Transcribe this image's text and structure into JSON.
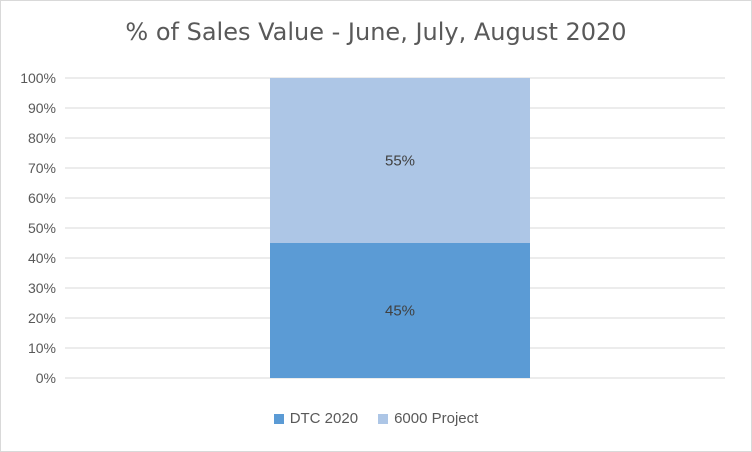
{
  "chart_data": {
    "type": "bar",
    "stacked": true,
    "title": "% of Sales Value - June, July, August 2020",
    "xlabel": "",
    "ylabel": "",
    "ylim": [
      0,
      100
    ],
    "y_ticks": [
      "0%",
      "10%",
      "20%",
      "30%",
      "40%",
      "50%",
      "60%",
      "70%",
      "80%",
      "90%",
      "100%"
    ],
    "categories": [
      ""
    ],
    "series": [
      {
        "name": "DTC 2020",
        "values": [
          45
        ],
        "data_label": "45%",
        "color": "#5b9bd5"
      },
      {
        "name": "6000 Project",
        "values": [
          55
        ],
        "data_label": "55%",
        "color": "#adc6e6"
      }
    ],
    "grid": true,
    "legend_position": "bottom"
  }
}
